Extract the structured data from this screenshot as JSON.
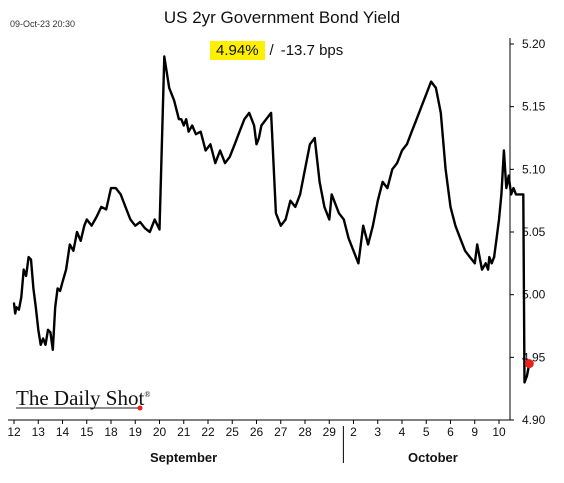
{
  "timestamp": "09-Oct-23 20:30",
  "chart_data": {
    "type": "line",
    "title": "US 2yr Government Bond Yield",
    "annotation": {
      "value": "4.94%",
      "separator": "/",
      "change": "-13.7 bps",
      "highlight_color": "#fff000"
    },
    "ylim": [
      4.9,
      5.2
    ],
    "yticks": [
      "5.20",
      "5.15",
      "5.10",
      "5.05",
      "5.00",
      "4.95",
      "4.90"
    ],
    "xticks": [
      "12",
      "13",
      "14",
      "15",
      "18",
      "19",
      "20",
      "21",
      "22",
      "25",
      "26",
      "27",
      "28",
      "29",
      "2",
      "3",
      "4",
      "5",
      "6",
      "9",
      "10"
    ],
    "months": [
      "September",
      "October"
    ],
    "line_color": "#000000",
    "marker_color": "#e8201e",
    "last_value": 4.945,
    "series": [
      {
        "x": [
          0,
          0.05,
          0.1,
          0.2,
          0.3,
          0.4,
          0.5,
          0.6,
          0.7,
          0.8,
          0.9,
          1.0,
          1.1,
          1.2,
          1.3,
          1.4,
          1.5,
          1.6,
          1.7,
          1.8,
          1.9,
          2.0,
          2.15,
          2.3,
          2.45,
          2.6,
          2.75,
          2.9,
          3.0,
          3.2,
          3.4,
          3.6,
          3.8,
          4.0,
          4.2,
          4.4,
          4.6,
          4.8,
          5.0,
          5.2,
          5.4,
          5.6,
          5.8,
          6.0,
          6.2,
          6.4,
          6.6,
          6.8,
          6.9,
          7.0,
          7.1,
          7.2,
          7.35,
          7.5,
          7.7,
          7.9,
          8.1,
          8.3,
          8.5,
          8.7,
          8.9,
          9.1,
          9.3,
          9.5,
          9.7,
          9.9,
          10.0,
          10.1,
          10.2,
          10.4,
          10.6,
          10.8,
          11.0,
          11.2,
          11.4,
          11.6,
          11.8,
          12.0,
          12.2,
          12.4,
          12.6,
          12.8,
          13.0,
          13.1,
          13.2,
          13.4,
          13.6,
          13.8,
          14.0,
          14.2,
          14.4,
          14.6,
          14.8,
          15.0,
          15.2,
          15.4,
          15.6,
          15.8,
          15.9,
          16.0,
          16.2,
          16.4,
          16.6,
          16.8,
          17.0,
          17.2,
          17.4,
          17.6,
          17.8,
          18.0,
          18.2,
          18.4,
          18.6,
          18.8,
          19.0,
          19.1,
          19.2,
          19.3,
          19.45,
          19.55,
          19.6,
          19.7,
          19.8
        ],
        "values": [
          4.993,
          4.985,
          4.99,
          4.988,
          4.998,
          5.02,
          5.015,
          5.03,
          5.028,
          5.005,
          4.99,
          4.972,
          4.96,
          4.965,
          4.96,
          4.972,
          4.97,
          4.956,
          4.99,
          5.005,
          5.003,
          5.01,
          5.02,
          5.04,
          5.035,
          5.05,
          5.043,
          5.055,
          5.06,
          5.055,
          5.062,
          5.07,
          5.068,
          5.085,
          5.085,
          5.08,
          5.07,
          5.06,
          5.055,
          5.058,
          5.053,
          5.05,
          5.06,
          5.052,
          5.19,
          5.165,
          5.155,
          5.14,
          5.14,
          5.135,
          5.14,
          5.13,
          5.135,
          5.128,
          5.13,
          5.115,
          5.12,
          5.105,
          5.115,
          5.105,
          5.11,
          5.12,
          5.13,
          5.14,
          5.145,
          5.135,
          5.12,
          5.125,
          5.135,
          5.14,
          5.145,
          5.065,
          5.055,
          5.06,
          5.075,
          5.07,
          5.08,
          5.1,
          5.12,
          5.125,
          5.09,
          5.07,
          5.06,
          5.08,
          5.075,
          5.065,
          5.06,
          5.045,
          5.035,
          5.025,
          5.055,
          5.04,
          5.055,
          5.075,
          5.09,
          5.085,
          5.1,
          5.105,
          5.11,
          5.115,
          5.12,
          5.13,
          5.14,
          5.15,
          5.16,
          5.17,
          5.165,
          5.145,
          5.1,
          5.07,
          5.055,
          5.045,
          5.035,
          5.03,
          5.025,
          5.04,
          5.03,
          5.02,
          5.025,
          5.02,
          5.03,
          5.025,
          5.03
        ]
      },
      {
        "x": [
          19.8,
          19.9,
          20.0,
          20.1,
          20.2,
          20.3,
          20.4,
          20.5,
          20.6,
          20.7,
          20.8,
          20.9,
          21.0,
          21.05,
          21.15,
          21.25
        ],
        "values": [
          5.03,
          5.045,
          5.06,
          5.08,
          5.115,
          5.085,
          5.095,
          5.08,
          5.085,
          5.08,
          5.08,
          5.08,
          5.08,
          4.93,
          4.935,
          4.945
        ]
      }
    ]
  },
  "logo": {
    "text": "The Daily Shot",
    "mark": "®"
  }
}
